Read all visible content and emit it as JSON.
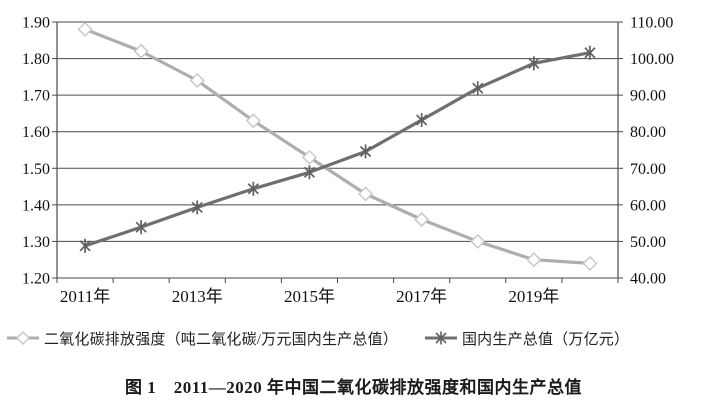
{
  "figure": {
    "caption": "图 1　2011—2020 年中国二氧化碳排放强度和国内生产总值"
  },
  "chart_data": {
    "type": "line",
    "categories": [
      "2011年",
      "2012年",
      "2013年",
      "2014年",
      "2015年",
      "2016年",
      "2017年",
      "2018年",
      "2019年",
      "2020年"
    ],
    "x_tick_labels": [
      "2011年",
      "2013年",
      "2015年",
      "2017年",
      "2019年"
    ],
    "series": [
      {
        "name": "二氧化碳排放强度（吨二氧化碳/万元国内生产总值）",
        "axis": "left",
        "marker": "diamond",
        "color": "#aeaeae",
        "marker_color": "#c6c6c6",
        "values": [
          1.88,
          1.82,
          1.74,
          1.63,
          1.53,
          1.43,
          1.36,
          1.3,
          1.25,
          1.24
        ]
      },
      {
        "name": "国内生产总值（万亿元）",
        "axis": "right",
        "marker": "asterisk",
        "color": "#6f6f6f",
        "marker_color": "#5f5f5f",
        "values": [
          48.8,
          53.9,
          59.3,
          64.4,
          68.9,
          74.6,
          83.2,
          91.9,
          98.7,
          101.6
        ]
      }
    ],
    "left_axis": {
      "min": 1.2,
      "max": 1.9,
      "step": 0.1,
      "tick_labels": [
        "1.90",
        "1.80",
        "1.70",
        "1.60",
        "1.50",
        "1.40",
        "1.30",
        "1.20"
      ]
    },
    "right_axis": {
      "min": 40,
      "max": 110,
      "step": 10,
      "tick_labels": [
        "110.00",
        "100.00",
        "90.00",
        "80.00",
        "70.00",
        "60.00",
        "50.00",
        "40.00"
      ]
    },
    "grid": true,
    "legend_position": "bottom",
    "axis_color": "#4a4a4a",
    "text_color": "#111111"
  }
}
